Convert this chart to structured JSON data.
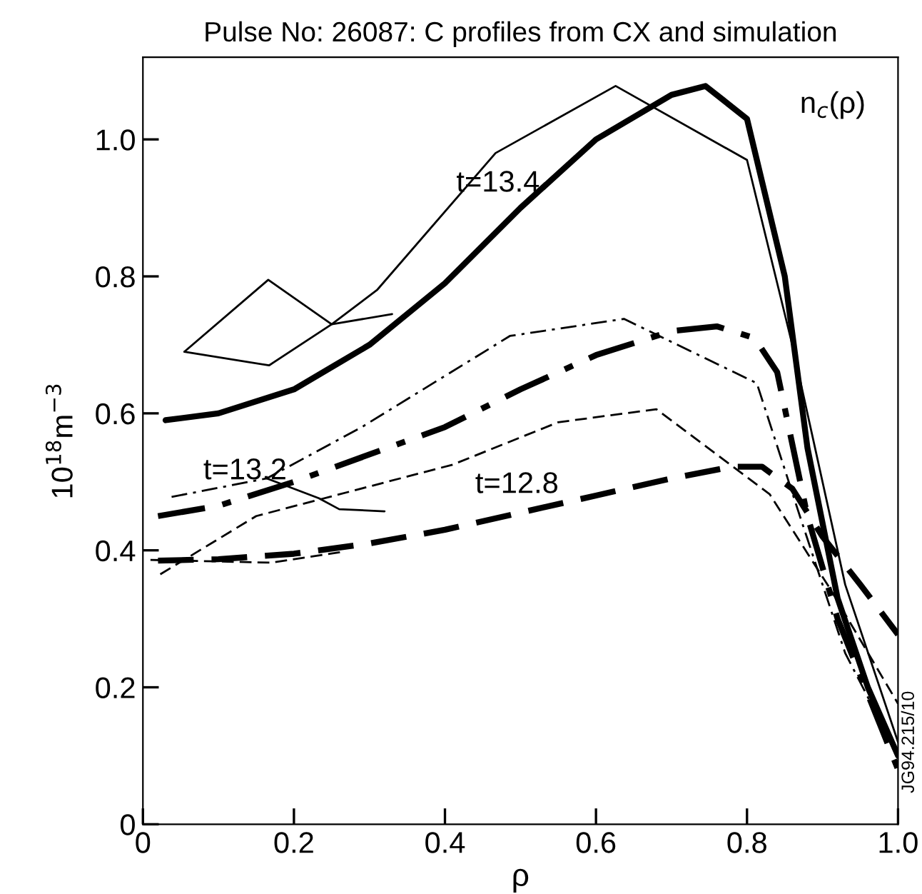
{
  "chart_data": {
    "type": "line",
    "title": "Pulse No: 26087: C profiles from CX and simulation",
    "xlabel": "ρ",
    "ylabel": "10$^{18}$m$^{−3}$",
    "annotations": [
      "t=13.4",
      "t=13.2",
      "t=12.8",
      "n$_{c}$(ρ)",
      "JG94.215/10"
    ],
    "xlim": [
      0,
      1
    ],
    "ylim": [
      0,
      1.12
    ],
    "xticks": [
      0,
      0.2,
      0.4,
      0.6,
      0.8,
      {
        "value": 1,
        "label": "1.0"
      }
    ],
    "yticks": [
      0,
      0.2,
      0.4,
      0.6,
      0.8,
      {
        "value": 1,
        "label": "1.0"
      }
    ],
    "grid": false,
    "legend": false,
    "marker": "none",
    "series": [
      {
        "color": "#000000",
        "line_style": "solid",
        "x": [
          0.03,
          0.1,
          0.2,
          0.3,
          0.4,
          0.5,
          0.6,
          0.7,
          0.745,
          0.8,
          0.85,
          0.88,
          0.92,
          0.96,
          1.0
        ],
        "values": [
          0.59,
          0.6,
          0.635,
          0.7,
          0.79,
          0.9,
          1.0,
          1.065,
          1.078,
          1.03,
          0.8,
          0.55,
          0.33,
          0.2,
          0.1
        ]
      },
      {
        "color": "#000000",
        "line_style": "solid",
        "x": [
          0.055,
          0.167,
          0.25,
          0.31,
          0.467,
          0.626,
          0.8,
          0.86,
          0.93,
          1.0
        ],
        "values": [
          0.69,
          0.67,
          0.73,
          0.78,
          0.98,
          1.078,
          0.97,
          0.7,
          0.35,
          0.12
        ]
      },
      {
        "color": "#000000",
        "line_style": "solid",
        "x": [
          0.055,
          0.166,
          0.25,
          0.33
        ],
        "values": [
          0.69,
          0.795,
          0.73,
          0.745
        ]
      },
      {
        "color": "#000000",
        "line_style": "dashdot",
        "x": [
          0.02,
          0.1,
          0.2,
          0.3,
          0.4,
          0.5,
          0.6,
          0.7,
          0.76,
          0.81,
          0.84,
          0.88,
          0.92,
          1.0
        ],
        "values": [
          0.45,
          0.465,
          0.5,
          0.54,
          0.58,
          0.635,
          0.685,
          0.72,
          0.727,
          0.71,
          0.66,
          0.45,
          0.3,
          0.08
        ]
      },
      {
        "color": "#000000",
        "line_style": "dashdot",
        "x": [
          0.038,
          0.164,
          0.29,
          0.486,
          0.637,
          0.813,
          0.87,
          0.93,
          1.0
        ],
        "values": [
          0.478,
          0.505,
          0.58,
          0.713,
          0.738,
          0.644,
          0.45,
          0.25,
          0.1
        ]
      },
      {
        "color": "#000000",
        "line_style": "solid",
        "x": [
          0.164,
          0.233,
          0.26,
          0.32
        ],
        "values": [
          0.505,
          0.476,
          0.46,
          0.457
        ]
      },
      {
        "color": "#000000",
        "line_style": "dashed",
        "x": [
          0.02,
          0.1,
          0.2,
          0.3,
          0.4,
          0.5,
          0.6,
          0.7,
          0.78,
          0.82,
          0.86,
          0.9,
          0.95,
          1.0
        ],
        "values": [
          0.385,
          0.387,
          0.395,
          0.41,
          0.43,
          0.455,
          0.48,
          0.505,
          0.522,
          0.522,
          0.49,
          0.42,
          0.35,
          0.277
        ]
      },
      {
        "color": "#000000",
        "line_style": "dashed",
        "x": [
          0.023,
          0.15,
          0.41,
          0.55,
          0.68,
          0.83,
          0.91,
          1.0
        ],
        "values": [
          0.365,
          0.45,
          0.525,
          0.587,
          0.606,
          0.482,
          0.344,
          0.176
        ]
      },
      {
        "color": "#000000",
        "line_style": "dashed",
        "x": [
          0.01,
          0.17,
          0.265
        ],
        "values": [
          0.386,
          0.382,
          0.398
        ]
      }
    ]
  }
}
